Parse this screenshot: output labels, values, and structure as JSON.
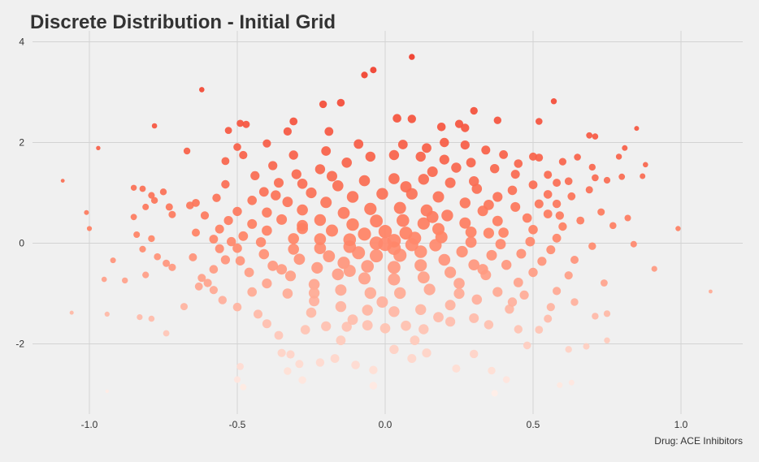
{
  "chart_data": {
    "type": "scatter",
    "title": "Discrete Distribution - Initial Grid",
    "xlabel": "",
    "ylabel": "",
    "caption": "Drug: ACE Inhibitors",
    "xlim": [
      -1.2,
      1.2
    ],
    "ylim": [
      -3.05,
      4.1
    ],
    "x_ticks": [
      -1.0,
      -0.5,
      0.0,
      0.5,
      1.0
    ],
    "x_tick_labels": [
      "-1.0",
      "-0.5",
      "0.0",
      "0.5",
      "1.0"
    ],
    "y_ticks": [
      -2,
      0,
      2,
      4
    ],
    "y_tick_labels": [
      "-2",
      "0",
      "2",
      "4"
    ],
    "grid": true,
    "legend": "none",
    "color_low": "#fff0ea",
    "color_high": "#ee3020",
    "points": [
      [
        0.09,
        3.7
      ],
      [
        -0.04,
        3.44
      ],
      [
        -0.07,
        3.34
      ],
      [
        -0.62,
        3.05
      ],
      [
        0.57,
        2.82
      ],
      [
        -0.15,
        2.79
      ],
      [
        0.3,
        2.63
      ],
      [
        -0.21,
        2.76
      ],
      [
        0.85,
        2.28
      ],
      [
        0.71,
        2.12
      ],
      [
        0.69,
        2.14
      ],
      [
        -0.49,
        2.38
      ],
      [
        -0.47,
        2.36
      ],
      [
        -0.31,
        2.42
      ],
      [
        -0.78,
        2.33
      ],
      [
        -0.53,
        2.24
      ],
      [
        0.04,
        2.48
      ],
      [
        0.09,
        2.47
      ],
      [
        0.52,
        2.42
      ],
      [
        0.25,
        2.37
      ],
      [
        0.38,
        2.44
      ],
      [
        0.19,
        2.31
      ],
      [
        0.27,
        2.29
      ],
      [
        -0.97,
        1.89
      ],
      [
        -0.67,
        1.83
      ],
      [
        0.81,
        1.89
      ],
      [
        0.88,
        1.56
      ],
      [
        0.79,
        1.72
      ],
      [
        0.65,
        1.71
      ],
      [
        0.5,
        1.72
      ],
      [
        0.52,
        1.7
      ],
      [
        -0.5,
        1.91
      ],
      [
        -0.54,
        1.63
      ],
      [
        -0.48,
        1.75
      ],
      [
        -0.4,
        1.98
      ],
      [
        -0.33,
        2.22
      ],
      [
        -0.19,
        2.22
      ],
      [
        -1.09,
        1.24
      ],
      [
        0.87,
        1.33
      ],
      [
        0.75,
        1.25
      ],
      [
        0.8,
        1.32
      ],
      [
        0.7,
        1.51
      ],
      [
        0.71,
        1.3
      ],
      [
        0.69,
        1.06
      ],
      [
        0.62,
        1.23
      ],
      [
        0.58,
        1.2
      ],
      [
        0.6,
        1.62
      ],
      [
        -0.85,
        1.1
      ],
      [
        -0.82,
        1.08
      ],
      [
        -0.79,
        0.95
      ],
      [
        -0.75,
        1.02
      ],
      [
        -0.78,
        0.85
      ],
      [
        -0.81,
        0.72
      ],
      [
        -0.73,
        0.72
      ],
      [
        -0.85,
        0.52
      ],
      [
        -0.72,
        0.57
      ],
      [
        -0.64,
        0.8
      ],
      [
        -0.66,
        0.75
      ],
      [
        -1.01,
        0.61
      ],
      [
        -1.0,
        0.29
      ],
      [
        -0.84,
        0.17
      ],
      [
        -0.79,
        0.09
      ],
      [
        -0.82,
        -0.12
      ],
      [
        -0.77,
        -0.27
      ],
      [
        -0.74,
        -0.4
      ],
      [
        -0.72,
        -0.48
      ],
      [
        -0.81,
        -0.63
      ],
      [
        -0.88,
        -0.74
      ],
      [
        -0.92,
        -0.34
      ],
      [
        -0.95,
        -0.72
      ],
      [
        -0.83,
        -1.47
      ],
      [
        -0.79,
        -1.5
      ],
      [
        -0.94,
        -1.41
      ],
      [
        -1.06,
        -1.38
      ],
      [
        -0.74,
        -1.79
      ],
      [
        -0.68,
        -1.26
      ],
      [
        -0.63,
        -0.86
      ],
      [
        -0.94,
        -2.94
      ],
      [
        0.99,
        0.29
      ],
      [
        0.91,
        -0.51
      ],
      [
        0.84,
        -0.02
      ],
      [
        1.1,
        -0.96
      ],
      [
        0.82,
        0.5
      ],
      [
        0.77,
        0.35
      ],
      [
        0.73,
        0.62
      ],
      [
        0.7,
        -0.06
      ],
      [
        0.74,
        -0.79
      ],
      [
        0.75,
        -1.4
      ],
      [
        0.71,
        -1.45
      ],
      [
        0.75,
        -1.93
      ],
      [
        0.68,
        -2.05
      ],
      [
        0.62,
        -2.11
      ],
      [
        0.59,
        -2.82
      ],
      [
        0.63,
        -2.77
      ],
      [
        0.41,
        -2.71
      ],
      [
        0.37,
        -2.98
      ],
      [
        0.36,
        -2.53
      ],
      [
        0.3,
        -2.2
      ],
      [
        0.24,
        -2.49
      ],
      [
        0.14,
        -2.18
      ],
      [
        0.09,
        -2.29
      ],
      [
        0.03,
        -2.11
      ],
      [
        -0.04,
        -2.52
      ],
      [
        -0.04,
        -2.83
      ],
      [
        -0.1,
        -2.42
      ],
      [
        -0.17,
        -2.29
      ],
      [
        -0.22,
        -2.37
      ],
      [
        -0.29,
        -2.4
      ],
      [
        -0.32,
        -2.21
      ],
      [
        -0.35,
        -2.18
      ],
      [
        -0.33,
        -2.54
      ],
      [
        -0.28,
        -2.72
      ],
      [
        -0.49,
        -2.45
      ],
      [
        -0.5,
        -2.71
      ],
      [
        -0.48,
        -2.86
      ],
      [
        0.48,
        -2.03
      ],
      [
        0.45,
        -1.71
      ],
      [
        0.52,
        -1.72
      ],
      [
        0.55,
        -1.5
      ],
      [
        0.64,
        -1.17
      ],
      [
        0.56,
        -1.27
      ],
      [
        0.47,
        -1.03
      ],
      [
        0.42,
        -1.31
      ],
      [
        0.35,
        -1.62
      ],
      [
        0.3,
        -1.49
      ],
      [
        0.22,
        -1.56
      ],
      [
        0.13,
        -1.71
      ],
      [
        0.07,
        -1.64
      ],
      [
        0.0,
        -1.69
      ],
      [
        -0.06,
        -1.63
      ],
      [
        -0.13,
        -1.66
      ],
      [
        -0.2,
        -1.65
      ],
      [
        -0.27,
        -1.72
      ],
      [
        -0.36,
        -1.83
      ],
      [
        -0.43,
        -1.41
      ],
      [
        -0.5,
        -1.27
      ],
      [
        -0.55,
        -1.13
      ],
      [
        -0.58,
        -0.93
      ],
      [
        -0.62,
        -0.69
      ],
      [
        -0.58,
        -0.52
      ],
      [
        -0.54,
        -0.33
      ],
      [
        -0.56,
        -0.11
      ],
      [
        -0.58,
        0.08
      ],
      [
        -0.56,
        0.28
      ],
      [
        -0.53,
        0.45
      ],
      [
        -0.5,
        0.63
      ],
      [
        -0.45,
        0.85
      ],
      [
        -0.41,
        1.02
      ],
      [
        -0.36,
        1.2
      ],
      [
        -0.3,
        1.37
      ],
      [
        -0.22,
        1.47
      ],
      [
        -0.13,
        1.6
      ],
      [
        -0.05,
        1.72
      ],
      [
        0.03,
        1.75
      ],
      [
        0.12,
        1.72
      ],
      [
        0.2,
        1.66
      ],
      [
        0.29,
        1.6
      ],
      [
        0.37,
        1.48
      ],
      [
        0.44,
        1.37
      ],
      [
        0.5,
        1.16
      ],
      [
        0.55,
        0.97
      ],
      [
        0.58,
        0.78
      ],
      [
        0.59,
        0.55
      ],
      [
        0.6,
        0.33
      ],
      [
        0.58,
        0.1
      ],
      [
        0.56,
        -0.13
      ],
      [
        0.53,
        -0.36
      ],
      [
        0.5,
        -0.58
      ],
      [
        0.45,
        -0.78
      ],
      [
        0.38,
        -0.97
      ],
      [
        0.31,
        -1.12
      ],
      [
        0.22,
        -1.23
      ],
      [
        0.12,
        -1.32
      ],
      [
        0.03,
        -1.36
      ],
      [
        -0.06,
        -1.33
      ],
      [
        -0.15,
        -1.26
      ],
      [
        -0.24,
        -1.15
      ],
      [
        -0.33,
        -1.0
      ],
      [
        -0.4,
        -0.8
      ],
      [
        -0.46,
        -0.58
      ],
      [
        -0.49,
        -0.35
      ],
      [
        -0.5,
        -0.1
      ],
      [
        -0.48,
        0.14
      ],
      [
        -0.45,
        0.38
      ],
      [
        -0.4,
        0.61
      ],
      [
        -0.33,
        0.82
      ],
      [
        -0.25,
        1.0
      ],
      [
        -0.16,
        1.14
      ],
      [
        -0.07,
        1.24
      ],
      [
        0.03,
        1.28
      ],
      [
        0.13,
        1.27
      ],
      [
        0.22,
        1.2
      ],
      [
        0.31,
        1.08
      ],
      [
        0.38,
        0.92
      ],
      [
        0.44,
        0.72
      ],
      [
        0.48,
        0.5
      ],
      [
        0.5,
        0.27
      ],
      [
        0.49,
        0.03
      ],
      [
        0.46,
        -0.21
      ],
      [
        0.41,
        -0.43
      ],
      [
        0.34,
        -0.63
      ],
      [
        0.25,
        -0.8
      ],
      [
        0.15,
        -0.92
      ],
      [
        0.05,
        -0.99
      ],
      [
        -0.05,
        -0.99
      ],
      [
        -0.15,
        -0.93
      ],
      [
        -0.24,
        -0.82
      ],
      [
        -0.32,
        -0.65
      ],
      [
        -0.38,
        -0.45
      ],
      [
        -0.41,
        -0.22
      ],
      [
        -0.42,
        0.02
      ],
      [
        -0.4,
        0.25
      ],
      [
        -0.35,
        0.47
      ],
      [
        -0.28,
        0.66
      ],
      [
        -0.2,
        0.81
      ],
      [
        -0.11,
        0.92
      ],
      [
        -0.01,
        0.98
      ],
      [
        0.09,
        0.98
      ],
      [
        0.18,
        0.92
      ],
      [
        0.27,
        0.8
      ],
      [
        0.33,
        0.64
      ],
      [
        0.38,
        0.44
      ],
      [
        0.4,
        0.21
      ],
      [
        0.39,
        -0.02
      ],
      [
        0.36,
        -0.24
      ],
      [
        0.3,
        -0.43
      ],
      [
        0.22,
        -0.58
      ],
      [
        0.13,
        -0.68
      ],
      [
        0.03,
        -0.72
      ],
      [
        -0.07,
        -0.7
      ],
      [
        -0.16,
        -0.62
      ],
      [
        -0.23,
        -0.49
      ],
      [
        -0.29,
        -0.32
      ],
      [
        -0.31,
        -0.12
      ],
      [
        -0.31,
        0.09
      ],
      [
        -0.28,
        0.29
      ],
      [
        -0.22,
        0.46
      ],
      [
        -0.14,
        0.6
      ],
      [
        -0.05,
        0.68
      ],
      [
        0.05,
        0.7
      ],
      [
        0.14,
        0.65
      ],
      [
        0.21,
        0.55
      ],
      [
        0.27,
        0.4
      ],
      [
        0.29,
        0.22
      ],
      [
        0.29,
        0.02
      ],
      [
        0.26,
        -0.17
      ],
      [
        0.2,
        -0.33
      ],
      [
        0.12,
        -0.44
      ],
      [
        0.03,
        -0.48
      ],
      [
        -0.06,
        -0.46
      ],
      [
        -0.14,
        -0.39
      ],
      [
        -0.19,
        -0.26
      ],
      [
        -0.22,
        -0.1
      ],
      [
        -0.22,
        0.08
      ],
      [
        -0.18,
        0.25
      ],
      [
        -0.11,
        0.37
      ],
      [
        -0.03,
        0.44
      ],
      [
        0.06,
        0.45
      ],
      [
        0.13,
        0.39
      ],
      [
        0.18,
        0.28
      ],
      [
        0.19,
        0.12
      ],
      [
        0.17,
        -0.04
      ],
      [
        0.12,
        -0.17
      ],
      [
        0.05,
        -0.24
      ],
      [
        -0.03,
        -0.25
      ],
      [
        -0.09,
        -0.19
      ],
      [
        -0.12,
        -0.07
      ],
      [
        -0.12,
        0.07
      ],
      [
        -0.07,
        0.18
      ],
      [
        0.0,
        0.23
      ],
      [
        0.07,
        0.2
      ],
      [
        0.1,
        0.1
      ],
      [
        0.09,
        -0.03
      ],
      [
        0.03,
        -0.1
      ],
      [
        -0.03,
        0.0
      ],
      [
        0.03,
        0.05
      ],
      [
        0.0,
        -0.02
      ],
      [
        0.24,
        1.5
      ],
      [
        0.16,
        1.42
      ],
      [
        -0.28,
        1.18
      ],
      [
        -0.18,
        1.33
      ],
      [
        -0.37,
        0.95
      ],
      [
        0.43,
        1.05
      ],
      [
        0.52,
        0.78
      ],
      [
        0.2,
        2.0
      ],
      [
        0.27,
        1.95
      ],
      [
        0.34,
        1.85
      ],
      [
        0.4,
        1.76
      ],
      [
        -0.09,
        1.97
      ],
      [
        -0.2,
        1.83
      ],
      [
        -0.31,
        1.75
      ],
      [
        0.06,
        1.96
      ],
      [
        0.14,
        1.89
      ],
      [
        0.45,
        1.58
      ],
      [
        -0.38,
        1.54
      ],
      [
        -0.44,
        1.34
      ],
      [
        0.55,
        1.36
      ],
      [
        0.63,
        0.93
      ],
      [
        0.66,
        0.45
      ],
      [
        0.64,
        -0.33
      ],
      [
        0.62,
        -0.64
      ],
      [
        0.58,
        -0.95
      ],
      [
        -0.65,
        -0.28
      ],
      [
        -0.64,
        0.21
      ],
      [
        -0.61,
        0.55
      ],
      [
        -0.57,
        0.9
      ],
      [
        -0.54,
        1.17
      ],
      [
        -0.6,
        -0.79
      ],
      [
        0.35,
        0.2
      ],
      [
        0.33,
        -0.52
      ],
      [
        -0.35,
        -0.52
      ],
      [
        0.25,
        -1.0
      ],
      [
        -0.25,
        -1.38
      ],
      [
        0.43,
        -1.17
      ],
      [
        0.18,
        -1.47
      ],
      [
        -0.11,
        -1.52
      ],
      [
        -0.4,
        -1.6
      ],
      [
        0.1,
        -1.93
      ],
      [
        -0.15,
        -1.93
      ],
      [
        -0.45,
        -0.97
      ],
      [
        0.55,
        0.58
      ],
      [
        -0.52,
        0.03
      ],
      [
        0.16,
        0.52
      ],
      [
        -0.12,
        -0.55
      ],
      [
        0.07,
        1.12
      ],
      [
        -0.01,
        -1.17
      ],
      [
        0.3,
        1.23
      ],
      [
        -0.24,
        -0.99
      ],
      [
        0.35,
        0.76
      ],
      [
        -0.28,
        0.35
      ]
    ]
  }
}
